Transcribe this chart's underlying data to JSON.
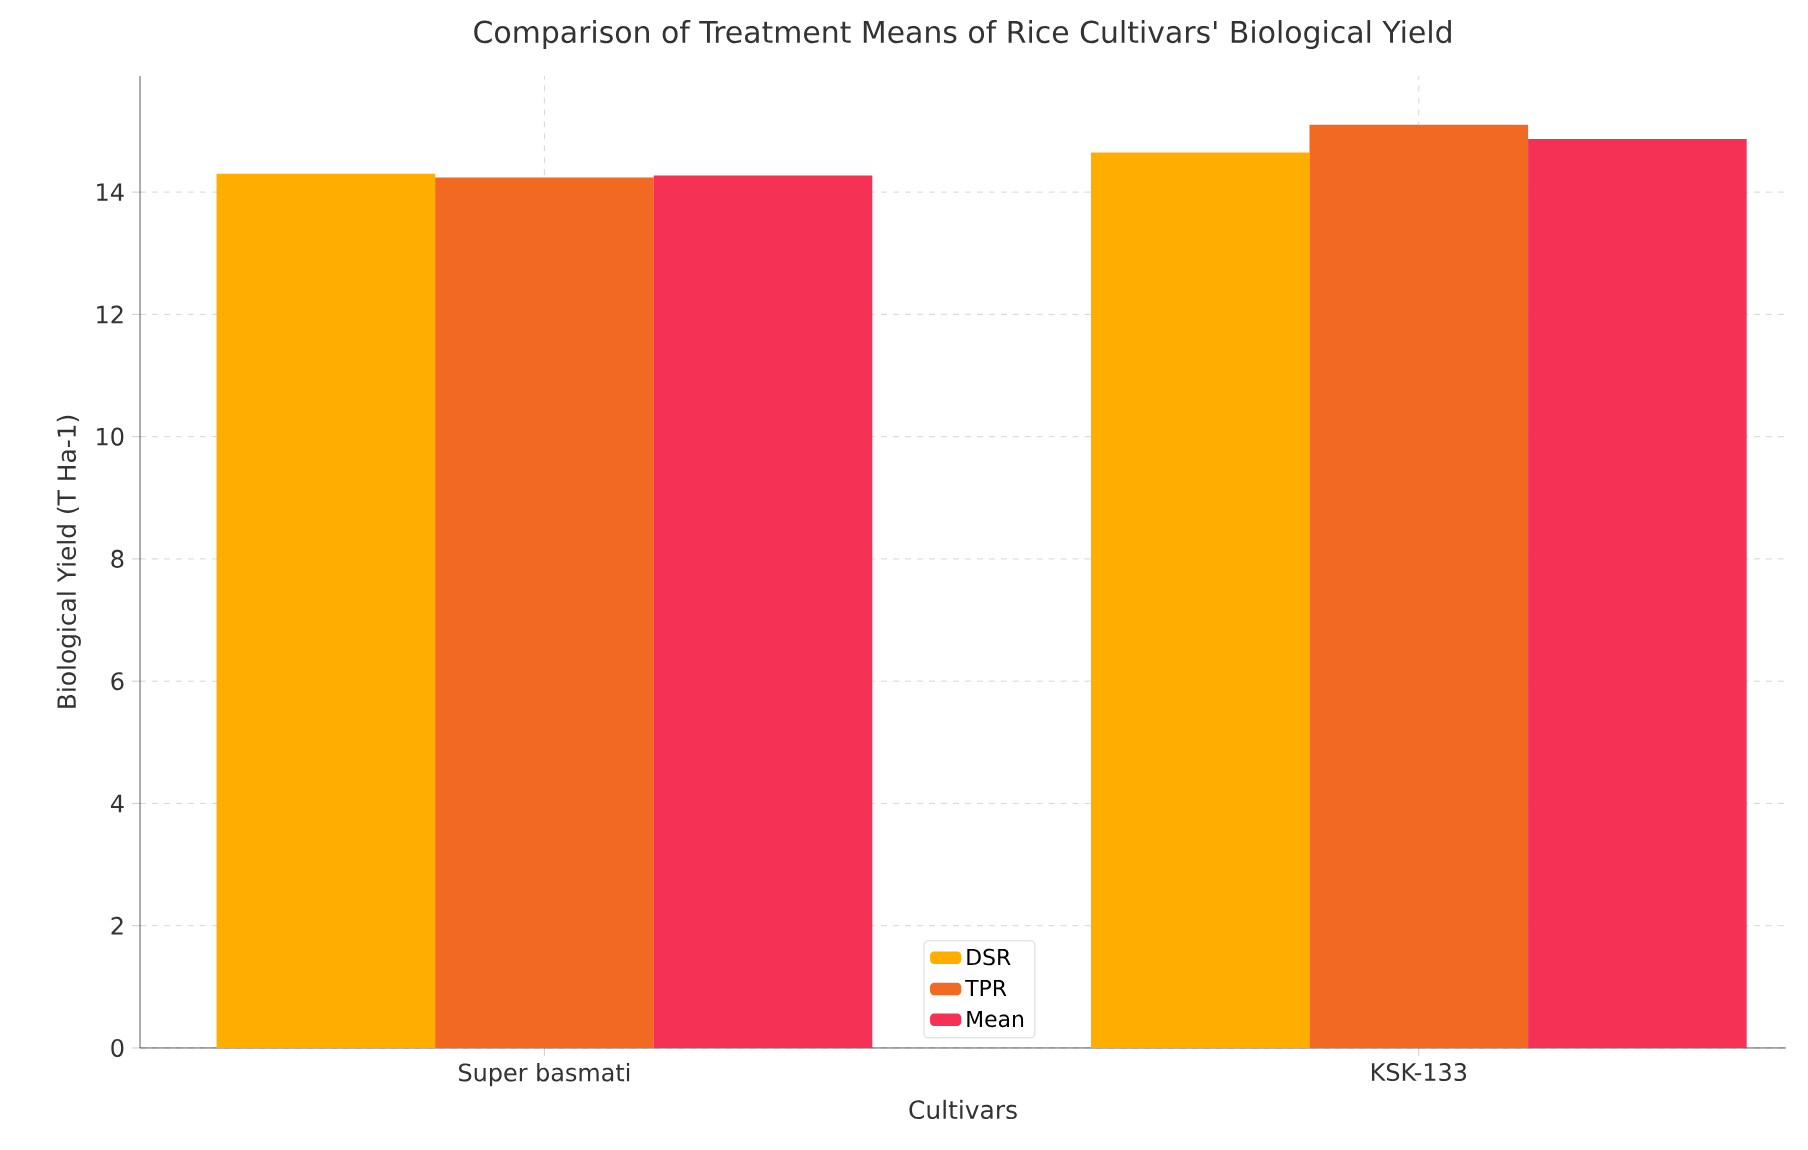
{
  "chart_data": {
    "type": "bar",
    "title": "Comparison of Treatment Means of Rice Cultivars' Biological Yield",
    "xlabel": "Cultivars",
    "ylabel": "Biological Yield (T Ha-1)",
    "categories": [
      "Super basmati",
      "KSK-133"
    ],
    "series": [
      {
        "name": "DSR",
        "color": "#ffae00",
        "values": [
          14.3,
          14.65
        ]
      },
      {
        "name": "TPR",
        "color": "#f26a21",
        "values": [
          14.24,
          15.1
        ]
      },
      {
        "name": "Mean",
        "color": "#f53255",
        "values": [
          14.27,
          14.87
        ]
      }
    ],
    "ylim": [
      0,
      15.9
    ],
    "yticks": [
      0,
      2,
      4,
      6,
      8,
      10,
      12,
      14
    ],
    "grid": true,
    "legend": "bottom"
  }
}
